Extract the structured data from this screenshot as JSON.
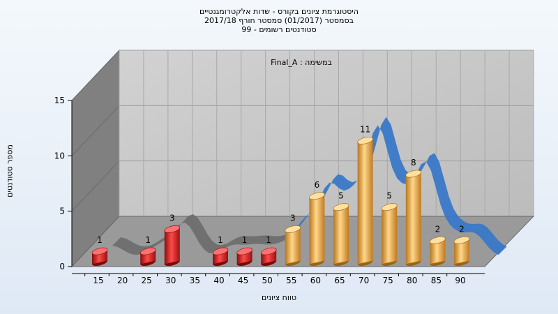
{
  "title_lines": [
    "היסטוגרמת ציונים בקורס - שדות אלקטרומגנטיים",
    "בסמסטר  (01/2017)  סמסטר חורף  2017/18",
    "סטודנטים רשומים - 99"
  ],
  "chart_data": {
    "type": "bar",
    "title": "היסטוגרמת ציונים בקורס - שדות אלקטרומגנטיים",
    "subtitle": "במשימה : Final_A",
    "xlabel": "טווח ציונים",
    "ylabel": "מספר סטודנטים",
    "ylim": [
      0,
      15
    ],
    "yticks": [
      "0",
      "5",
      "10",
      "15"
    ],
    "xticks": [
      "15",
      "20",
      "25",
      "30",
      "35",
      "40",
      "45",
      "50",
      "55",
      "60",
      "65",
      "70",
      "75",
      "80",
      "85",
      "90"
    ],
    "grid": true,
    "bars": [
      {
        "x": 15,
        "value": 1,
        "color": "#d42020"
      },
      {
        "x": 25,
        "value": 1,
        "color": "#d42020"
      },
      {
        "x": 30,
        "value": 3,
        "color": "#d42020"
      },
      {
        "x": 40,
        "value": 1,
        "color": "#d42020"
      },
      {
        "x": 45,
        "value": 1,
        "color": "#d42020"
      },
      {
        "x": 50,
        "value": 1,
        "color": "#d42020"
      },
      {
        "x": 55,
        "value": 3,
        "color": "#e8a440"
      },
      {
        "x": 60,
        "value": 6,
        "color": "#e8a440"
      },
      {
        "x": 65,
        "value": 5,
        "color": "#e8a440"
      },
      {
        "x": 70,
        "value": 11,
        "color": "#e8a440"
      },
      {
        "x": 75,
        "value": 5,
        "color": "#e8a440"
      },
      {
        "x": 80,
        "value": 8,
        "color": "#e8a440"
      },
      {
        "x": 85,
        "value": 2,
        "color": "#e8a440"
      },
      {
        "x": 90,
        "value": 2,
        "color": "#e8a440"
      }
    ],
    "colors": {
      "fail": "#d42020",
      "pass": "#e8a440",
      "curve_fail": "#6e6e6e",
      "curve_pass": "#3a78c8",
      "plot_back": "#c8c8c8",
      "plot_side": "#808080",
      "plot_floor": "#9a9a9a"
    }
  }
}
